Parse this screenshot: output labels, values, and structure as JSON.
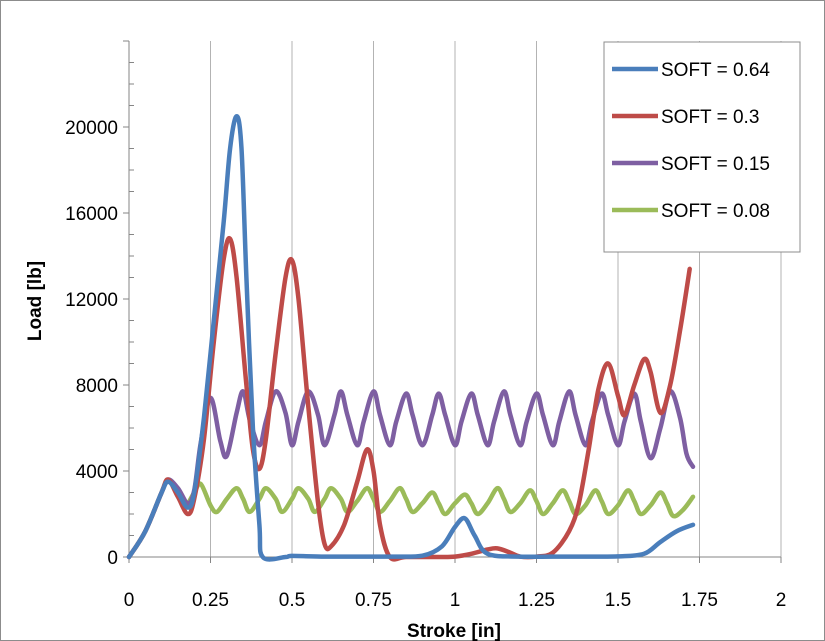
{
  "chart_data": {
    "type": "line",
    "title": "",
    "xlabel": "Stroke [in]",
    "ylabel": "Load [lb]",
    "xlim": [
      0,
      2
    ],
    "ylim": [
      0,
      24000
    ],
    "x_ticks": [
      "0",
      "0.25",
      "0.5",
      "0.75",
      "1",
      "1.25",
      "1.5",
      "1.75",
      "2"
    ],
    "y_ticks": [
      "0",
      "4000",
      "8000",
      "12000",
      "16000",
      "20000"
    ],
    "grid": "vertical",
    "legend_position": "top-right",
    "series": [
      {
        "name": "SOFT = 0.64",
        "color": "#4a7ebb",
        "points": [
          [
            0,
            0
          ],
          [
            0.05,
            1200
          ],
          [
            0.1,
            3000
          ],
          [
            0.12,
            3500
          ],
          [
            0.15,
            3000
          ],
          [
            0.18,
            2300
          ],
          [
            0.2,
            3000
          ],
          [
            0.23,
            6500
          ],
          [
            0.26,
            11000
          ],
          [
            0.29,
            15500
          ],
          [
            0.31,
            19000
          ],
          [
            0.33,
            20500
          ],
          [
            0.345,
            19000
          ],
          [
            0.36,
            13000
          ],
          [
            0.38,
            6000
          ],
          [
            0.4,
            1500
          ],
          [
            0.41,
            0
          ],
          [
            0.48,
            0
          ],
          [
            0.5,
            50
          ],
          [
            0.6,
            20
          ],
          [
            0.7,
            20
          ],
          [
            0.8,
            20
          ],
          [
            0.9,
            60
          ],
          [
            0.96,
            500
          ],
          [
            1.0,
            1400
          ],
          [
            1.03,
            1800
          ],
          [
            1.06,
            1000
          ],
          [
            1.1,
            150
          ],
          [
            1.2,
            20
          ],
          [
            1.3,
            20
          ],
          [
            1.4,
            20
          ],
          [
            1.5,
            30
          ],
          [
            1.58,
            150
          ],
          [
            1.63,
            700
          ],
          [
            1.68,
            1200
          ],
          [
            1.73,
            1500
          ]
        ]
      },
      {
        "name": "SOFT = 0.3",
        "color": "#be4b48",
        "points": [
          [
            0,
            0
          ],
          [
            0.05,
            1200
          ],
          [
            0.1,
            3000
          ],
          [
            0.12,
            3600
          ],
          [
            0.15,
            2800
          ],
          [
            0.18,
            2000
          ],
          [
            0.2,
            2700
          ],
          [
            0.23,
            5500
          ],
          [
            0.26,
            10000
          ],
          [
            0.29,
            13800
          ],
          [
            0.31,
            14800
          ],
          [
            0.33,
            13000
          ],
          [
            0.36,
            8000
          ],
          [
            0.38,
            5000
          ],
          [
            0.4,
            4100
          ],
          [
            0.42,
            5500
          ],
          [
            0.45,
            9500
          ],
          [
            0.48,
            13000
          ],
          [
            0.5,
            13800
          ],
          [
            0.52,
            12000
          ],
          [
            0.55,
            7000
          ],
          [
            0.58,
            2500
          ],
          [
            0.6,
            600
          ],
          [
            0.62,
            500
          ],
          [
            0.66,
            1500
          ],
          [
            0.7,
            3500
          ],
          [
            0.73,
            5000
          ],
          [
            0.75,
            4000
          ],
          [
            0.77,
            1500
          ],
          [
            0.8,
            0
          ],
          [
            0.85,
            0
          ],
          [
            0.95,
            0
          ],
          [
            1.0,
            20
          ],
          [
            1.05,
            150
          ],
          [
            1.1,
            350
          ],
          [
            1.13,
            400
          ],
          [
            1.17,
            200
          ],
          [
            1.2,
            20
          ],
          [
            1.25,
            20
          ],
          [
            1.3,
            200
          ],
          [
            1.35,
            1200
          ],
          [
            1.38,
            2500
          ],
          [
            1.41,
            5000
          ],
          [
            1.44,
            7800
          ],
          [
            1.47,
            9000
          ],
          [
            1.5,
            7500
          ],
          [
            1.52,
            6600
          ],
          [
            1.55,
            8000
          ],
          [
            1.58,
            9200
          ],
          [
            1.6,
            8600
          ],
          [
            1.63,
            6700
          ],
          [
            1.66,
            8000
          ],
          [
            1.69,
            10500
          ],
          [
            1.72,
            13400
          ]
        ]
      },
      {
        "name": "SOFT = 0.15",
        "color": "#7e5fa2",
        "points": [
          [
            0,
            0
          ],
          [
            0.05,
            1200
          ],
          [
            0.1,
            3000
          ],
          [
            0.12,
            3600
          ],
          [
            0.15,
            3200
          ],
          [
            0.18,
            2500
          ],
          [
            0.2,
            3100
          ],
          [
            0.22,
            5300
          ],
          [
            0.25,
            7400
          ],
          [
            0.28,
            5400
          ],
          [
            0.3,
            4700
          ],
          [
            0.33,
            6700
          ],
          [
            0.35,
            7700
          ],
          [
            0.37,
            6400
          ],
          [
            0.4,
            5200
          ],
          [
            0.42,
            6300
          ],
          [
            0.45,
            7700
          ],
          [
            0.48,
            6700
          ],
          [
            0.5,
            5200
          ],
          [
            0.52,
            6300
          ],
          [
            0.55,
            7700
          ],
          [
            0.58,
            6600
          ],
          [
            0.6,
            5200
          ],
          [
            0.63,
            6600
          ],
          [
            0.65,
            7700
          ],
          [
            0.67,
            6600
          ],
          [
            0.7,
            5200
          ],
          [
            0.72,
            6300
          ],
          [
            0.75,
            7700
          ],
          [
            0.77,
            6600
          ],
          [
            0.8,
            5200
          ],
          [
            0.82,
            6300
          ],
          [
            0.85,
            7600
          ],
          [
            0.87,
            6600
          ],
          [
            0.9,
            5200
          ],
          [
            0.93,
            6600
          ],
          [
            0.95,
            7600
          ],
          [
            0.97,
            6600
          ],
          [
            1.0,
            5200
          ],
          [
            1.02,
            6300
          ],
          [
            1.05,
            7600
          ],
          [
            1.07,
            6600
          ],
          [
            1.1,
            5200
          ],
          [
            1.12,
            6300
          ],
          [
            1.15,
            7700
          ],
          [
            1.17,
            6600
          ],
          [
            1.2,
            5200
          ],
          [
            1.22,
            6300
          ],
          [
            1.25,
            7600
          ],
          [
            1.27,
            6600
          ],
          [
            1.3,
            5200
          ],
          [
            1.32,
            6300
          ],
          [
            1.35,
            7700
          ],
          [
            1.37,
            6600
          ],
          [
            1.4,
            5200
          ],
          [
            1.42,
            6300
          ],
          [
            1.45,
            7600
          ],
          [
            1.47,
            6600
          ],
          [
            1.5,
            5200
          ],
          [
            1.52,
            6300
          ],
          [
            1.55,
            7600
          ],
          [
            1.57,
            6300
          ],
          [
            1.6,
            4600
          ],
          [
            1.63,
            6000
          ],
          [
            1.66,
            7700
          ],
          [
            1.69,
            6500
          ],
          [
            1.71,
            4800
          ],
          [
            1.73,
            4200
          ]
        ]
      },
      {
        "name": "SOFT = 0.08",
        "color": "#9bbb59",
        "points": [
          [
            0,
            0
          ],
          [
            0.05,
            1200
          ],
          [
            0.1,
            3000
          ],
          [
            0.12,
            3600
          ],
          [
            0.15,
            3000
          ],
          [
            0.17,
            2300
          ],
          [
            0.2,
            3000
          ],
          [
            0.22,
            3400
          ],
          [
            0.25,
            2400
          ],
          [
            0.27,
            2100
          ],
          [
            0.3,
            2700
          ],
          [
            0.33,
            3200
          ],
          [
            0.35,
            2700
          ],
          [
            0.37,
            2100
          ],
          [
            0.4,
            2700
          ],
          [
            0.42,
            3200
          ],
          [
            0.45,
            2700
          ],
          [
            0.47,
            2100
          ],
          [
            0.5,
            2700
          ],
          [
            0.52,
            3200
          ],
          [
            0.55,
            2700
          ],
          [
            0.57,
            2100
          ],
          [
            0.6,
            2700
          ],
          [
            0.62,
            3200
          ],
          [
            0.65,
            2700
          ],
          [
            0.67,
            2100
          ],
          [
            0.7,
            2600
          ],
          [
            0.73,
            3200
          ],
          [
            0.75,
            2700
          ],
          [
            0.77,
            2100
          ],
          [
            0.8,
            2600
          ],
          [
            0.83,
            3200
          ],
          [
            0.85,
            2700
          ],
          [
            0.87,
            2100
          ],
          [
            0.9,
            2500
          ],
          [
            0.93,
            3000
          ],
          [
            0.95,
            2500
          ],
          [
            0.97,
            2000
          ],
          [
            1.0,
            2500
          ],
          [
            1.03,
            2900
          ],
          [
            1.05,
            2500
          ],
          [
            1.07,
            2000
          ],
          [
            1.1,
            2500
          ],
          [
            1.13,
            3200
          ],
          [
            1.15,
            2700
          ],
          [
            1.17,
            2100
          ],
          [
            1.2,
            2500
          ],
          [
            1.23,
            3100
          ],
          [
            1.25,
            2600
          ],
          [
            1.27,
            2000
          ],
          [
            1.3,
            2500
          ],
          [
            1.33,
            3100
          ],
          [
            1.35,
            2600
          ],
          [
            1.37,
            2000
          ],
          [
            1.4,
            2400
          ],
          [
            1.43,
            3100
          ],
          [
            1.45,
            2600
          ],
          [
            1.47,
            2000
          ],
          [
            1.5,
            2400
          ],
          [
            1.53,
            3100
          ],
          [
            1.55,
            2600
          ],
          [
            1.57,
            2000
          ],
          [
            1.6,
            2400
          ],
          [
            1.63,
            3000
          ],
          [
            1.65,
            2500
          ],
          [
            1.67,
            1900
          ],
          [
            1.7,
            2200
          ],
          [
            1.73,
            2800
          ]
        ]
      }
    ]
  }
}
